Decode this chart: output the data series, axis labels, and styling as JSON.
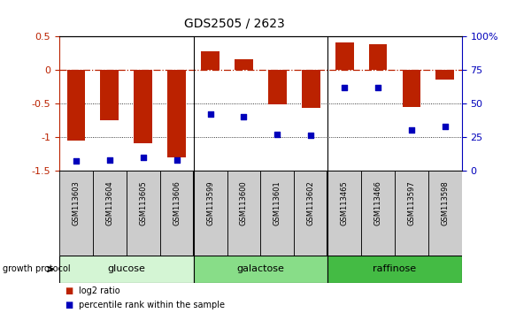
{
  "title": "GDS2505 / 2623",
  "samples": [
    "GSM113603",
    "GSM113604",
    "GSM113605",
    "GSM113606",
    "GSM113599",
    "GSM113600",
    "GSM113601",
    "GSM113602",
    "GSM113465",
    "GSM113466",
    "GSM113597",
    "GSM113598"
  ],
  "log2_ratio": [
    -1.05,
    -0.75,
    -1.1,
    -1.3,
    0.27,
    0.15,
    -0.52,
    -0.57,
    0.4,
    0.38,
    -0.55,
    -0.15
  ],
  "percentile_rank": [
    7,
    8,
    10,
    8,
    42,
    40,
    27,
    26,
    62,
    62,
    30,
    33
  ],
  "groups": [
    {
      "label": "glucose",
      "start": 0,
      "end": 4,
      "color": "#d4f5d4"
    },
    {
      "label": "galactose",
      "start": 4,
      "end": 8,
      "color": "#88dd88"
    },
    {
      "label": "raffinose",
      "start": 8,
      "end": 12,
      "color": "#44bb44"
    }
  ],
  "bar_color": "#bb2200",
  "dot_color": "#0000bb",
  "ylim_left": [
    -1.5,
    0.5
  ],
  "ylim_right": [
    0,
    100
  ],
  "dotted_lines": [
    -0.5,
    -1.0
  ],
  "background_color": "#ffffff",
  "label_box_color": "#cccccc",
  "legend_items": [
    "log2 ratio",
    "percentile rank within the sample"
  ],
  "bar_width": 0.55
}
